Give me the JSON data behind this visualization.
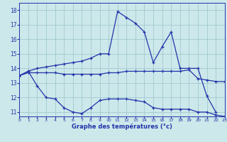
{
  "title": "Graphe des températures (°c)",
  "background_color": "#cce8ea",
  "line_color": "#2233aa",
  "grid_color": "#99c4cc",
  "xlim": [
    0,
    23
  ],
  "ylim": [
    10.7,
    18.5
  ],
  "xticks": [
    0,
    1,
    2,
    3,
    4,
    5,
    6,
    7,
    8,
    9,
    10,
    11,
    12,
    13,
    14,
    15,
    16,
    17,
    18,
    19,
    20,
    21,
    22,
    23
  ],
  "yticks": [
    11,
    12,
    13,
    14,
    15,
    16,
    17,
    18
  ],
  "line_top_x": [
    0,
    1,
    2,
    3,
    4,
    5,
    6,
    7,
    8,
    9,
    10,
    11,
    12,
    13,
    14,
    15,
    16,
    17,
    18,
    19,
    20,
    21,
    22
  ],
  "line_top_y": [
    13.5,
    13.8,
    14.0,
    14.1,
    14.2,
    14.3,
    14.4,
    14.5,
    14.7,
    15.0,
    15.0,
    17.9,
    17.5,
    17.1,
    16.5,
    14.4,
    15.5,
    16.5,
    14.0,
    14.0,
    14.0,
    12.1,
    11.0
  ],
  "line_mid_x": [
    0,
    1,
    2,
    3,
    4,
    5,
    6,
    7,
    8,
    9,
    10,
    11,
    12,
    13,
    14,
    15,
    16,
    17,
    18,
    19,
    20,
    21,
    22,
    23
  ],
  "line_mid_y": [
    13.5,
    13.7,
    13.7,
    13.7,
    13.7,
    13.6,
    13.6,
    13.6,
    13.6,
    13.6,
    13.7,
    13.7,
    13.8,
    13.8,
    13.8,
    13.8,
    13.8,
    13.8,
    13.8,
    13.9,
    13.3,
    13.2,
    13.1,
    13.1
  ],
  "line_bot_x": [
    0,
    1,
    2,
    3,
    4,
    5,
    6,
    7,
    8,
    9,
    10,
    11,
    12,
    13,
    14,
    15,
    16,
    17,
    18,
    19,
    20,
    21,
    22,
    23
  ],
  "line_bot_y": [
    13.5,
    13.8,
    12.8,
    12.0,
    11.9,
    11.3,
    11.0,
    10.9,
    11.3,
    11.8,
    11.9,
    11.9,
    11.9,
    11.8,
    11.7,
    11.3,
    11.2,
    11.2,
    11.2,
    11.2,
    11.0,
    11.0,
    10.8,
    10.7
  ]
}
